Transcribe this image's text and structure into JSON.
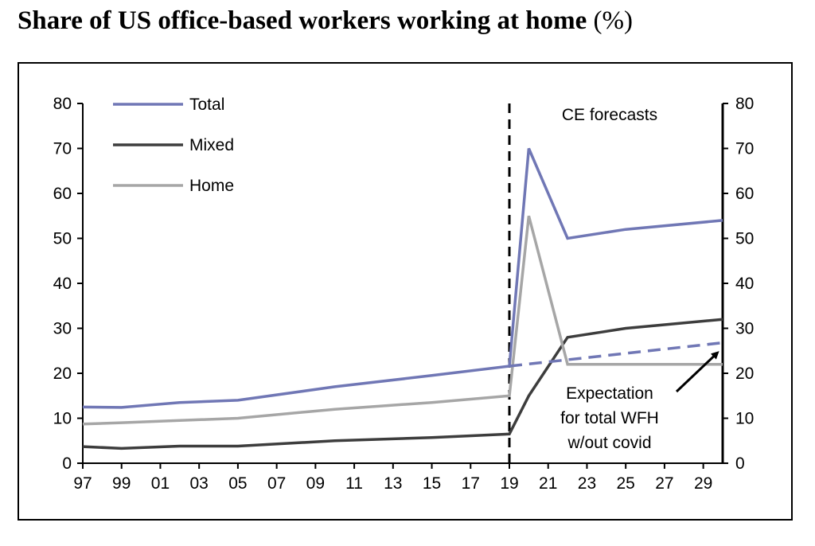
{
  "title": "Share of US office-based workers working at home",
  "title_unit": "(%)",
  "chart_data": {
    "type": "line",
    "title": "Share of US office-based workers working at home (%)",
    "xlabel": "",
    "ylabel": "",
    "x_tick_labels": [
      "97",
      "99",
      "01",
      "03",
      "05",
      "07",
      "09",
      "11",
      "13",
      "15",
      "17",
      "19",
      "21",
      "23",
      "25",
      "27",
      "29"
    ],
    "x_range": [
      1997,
      2030
    ],
    "ylim": [
      0,
      80
    ],
    "y_ticks": [
      0,
      10,
      20,
      30,
      40,
      50,
      60,
      70,
      80
    ],
    "y_tick_labels": [
      "0",
      "10",
      "20",
      "30",
      "40",
      "50",
      "60",
      "70",
      "80"
    ],
    "secondary_y_axis": true,
    "grid": false,
    "legend_position": "top-left",
    "series": [
      {
        "name": "Total",
        "color": "#7077b5",
        "style": "solid",
        "x": [
          1997,
          1999,
          2002,
          2005,
          2010,
          2015,
          2019,
          2020,
          2022,
          2025,
          2030
        ],
        "y": [
          12.5,
          12.4,
          13.5,
          14,
          17,
          19.5,
          21.6,
          70,
          50,
          52,
          54
        ]
      },
      {
        "name": "Mixed",
        "color": "#3d3d3d",
        "style": "solid",
        "x": [
          1997,
          1999,
          2002,
          2005,
          2010,
          2015,
          2019,
          2020,
          2022,
          2025,
          2030
        ],
        "y": [
          3.7,
          3.3,
          3.8,
          3.8,
          5,
          5.7,
          6.5,
          15,
          28,
          30,
          32
        ]
      },
      {
        "name": "Home",
        "color": "#a6a6a6",
        "style": "solid",
        "x": [
          1997,
          1999,
          2002,
          2005,
          2010,
          2015,
          2019,
          2020,
          2022,
          2025,
          2030
        ],
        "y": [
          8.7,
          9,
          9.5,
          10,
          12,
          13.5,
          15,
          55,
          22,
          22,
          22
        ]
      },
      {
        "name": "Expectation for total WFH w/out covid",
        "color": "#7077b5",
        "style": "dashed",
        "x": [
          2019,
          2030
        ],
        "y": [
          21.6,
          26.8
        ]
      }
    ],
    "forecast_marker": {
      "x": 2019,
      "label": "CE forecasts"
    },
    "annotation": {
      "lines": [
        "Expectation",
        "for total WFH",
        "w/out covid"
      ],
      "arrow_target_x": 2030,
      "arrow_target_y": 26.8
    }
  }
}
